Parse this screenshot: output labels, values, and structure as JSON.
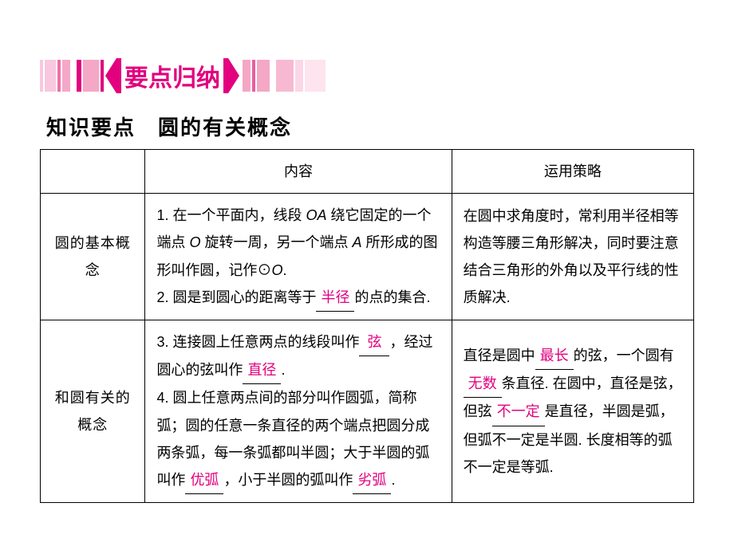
{
  "banner": {
    "title": "要点归纳",
    "stripes_left": [
      {
        "w": 4,
        "c": "#f8c8de"
      },
      {
        "w": 14,
        "c": "#f8c8de"
      },
      {
        "w": 4,
        "c": "#ef6ea8"
      },
      {
        "w": 10,
        "c": "#f4a8c6"
      },
      {
        "w": 4,
        "c": "#ffffff"
      },
      {
        "w": 6,
        "c": "#e2007f"
      },
      {
        "w": 20,
        "c": "#f4a8c6"
      },
      {
        "w": 4,
        "c": "#e2007f"
      }
    ],
    "stripes_right": [
      {
        "w": 10,
        "c": "#f4a8c6"
      },
      {
        "w": 4,
        "c": "#e85ea0"
      },
      {
        "w": 16,
        "c": "#f4a8c6"
      },
      {
        "w": 4,
        "c": "#ffffff"
      },
      {
        "w": 22,
        "c": "#f7b9d2"
      },
      {
        "w": 10,
        "c": "#fbd7e5"
      },
      {
        "w": 26,
        "c": "#fde4ee"
      }
    ]
  },
  "section_title": "知识要点　圆的有关概念",
  "table": {
    "headers": {
      "col2": "内容",
      "col3": "运用策略"
    },
    "rows": [
      {
        "head": "圆的基本概念",
        "content_p1a": "1. 在一个平面内，线段 ",
        "content_p1_oa": "OA",
        "content_p1b": " 绕它固定的一个端点 ",
        "content_p1_o": "O",
        "content_p1c": " 旋转一周，另一个端点 ",
        "content_p1_a": "A",
        "content_p1d": " 所形成的图形叫作圆，记作⊙",
        "content_p1_o2": "O",
        "content_p1e": ".",
        "content_p2a": "2. 圆是到圆心的距离等于",
        "blank1": "半径",
        "content_p2b": "的点的集合.",
        "strategy": "在圆中求角度时，常利用半径相等构造等腰三角形解决，同时要注意结合三角形的外角以及平行线的性质解决."
      },
      {
        "head": "和圆有关的概念",
        "c3a": "3. 连接圆上任意两点的线段叫作",
        "blank2": "弦",
        "c3b": "，经过圆心的弦叫作",
        "blank3": "直径",
        "c3c": ".",
        "c4a": "4. 圆上任意两点间的部分叫作圆弧，简称弧；圆的任意一条直径的两个端点把圆分成两条弧，每一条弧都叫半圆；大于半圆的弧叫作",
        "blank4": "优弧",
        "c4b": "，小于半圆的弧叫作",
        "blank5": "劣弧",
        "c4c": ".",
        "s2a": "直径是圆中",
        "sblank1": "最长",
        "s2b": "的弦，一个圆有",
        "sblank2": "无数",
        "s2c": "条直径. 在圆中，直径是弦，但弦",
        "sblank3": "不一定",
        "s2d": "是直径，半圆是弧，但弧不一定是半圆. 长度相等的弧不一定是等弧."
      }
    ]
  }
}
